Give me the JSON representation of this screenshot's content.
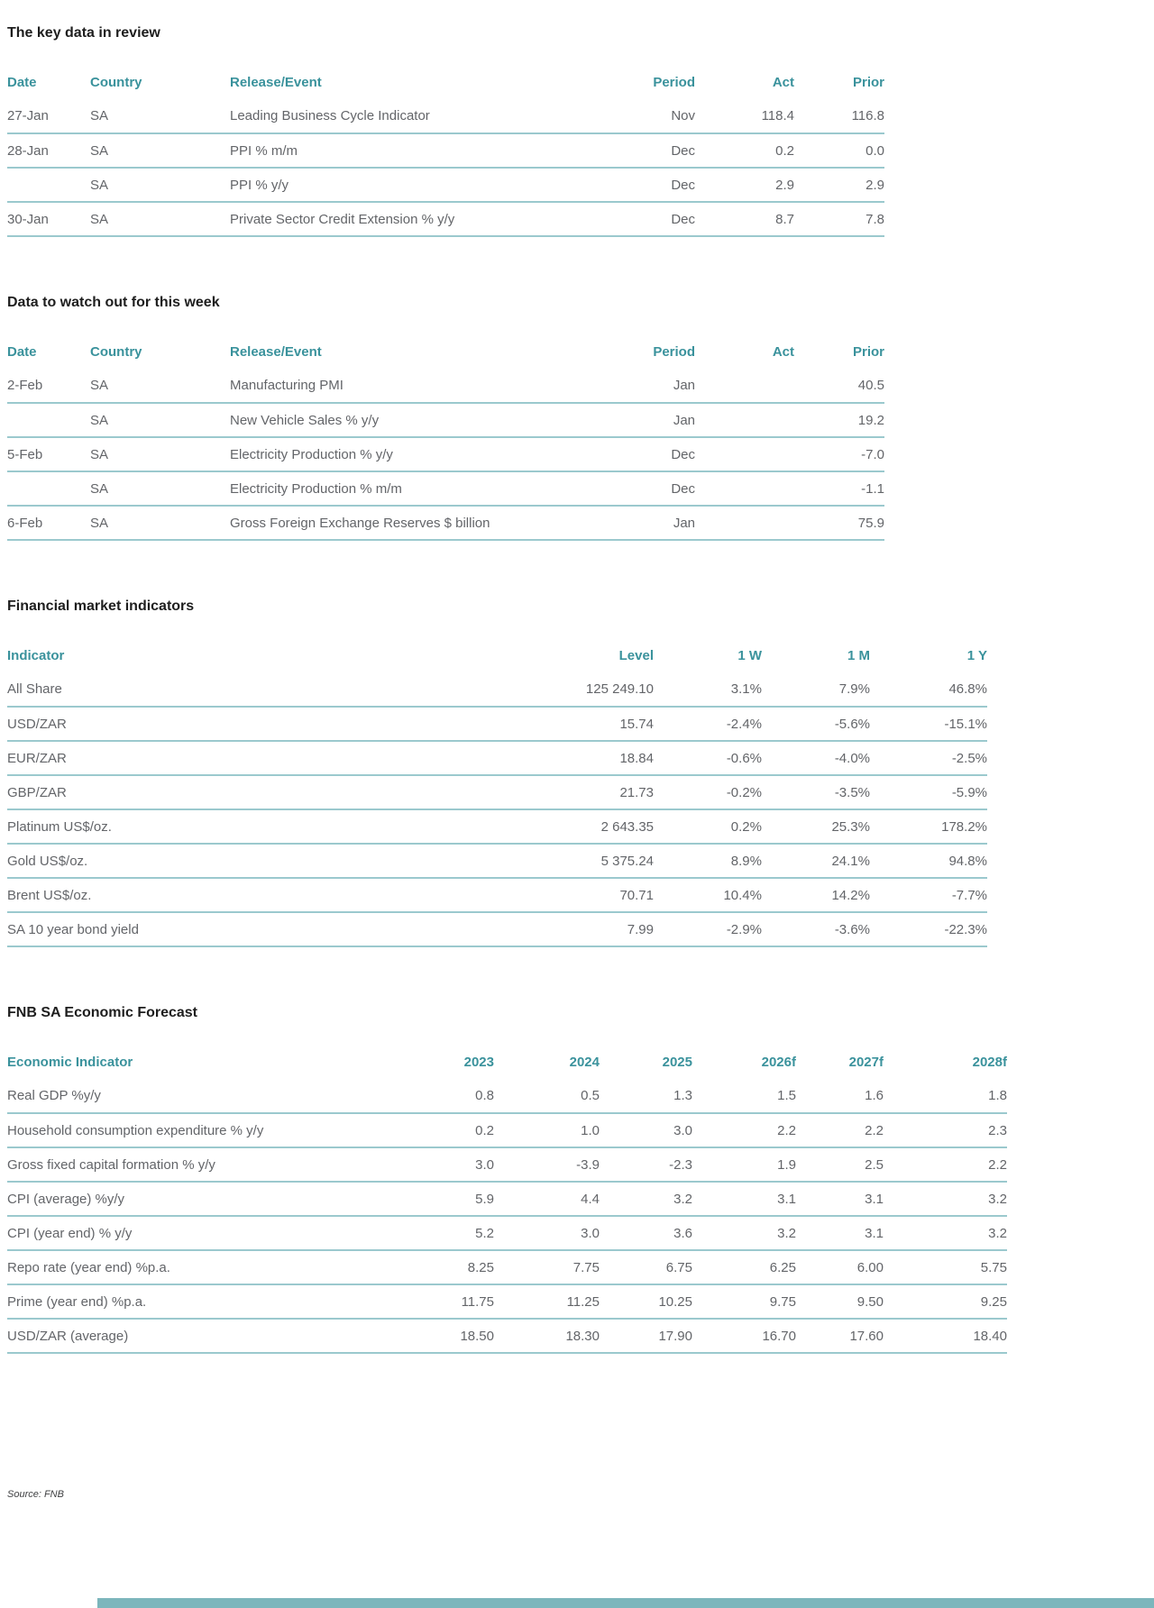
{
  "page": {
    "source_note": "Source: FNB",
    "colors": {
      "accent_teal": "#3a929c",
      "row_divider": "#9bc9ce",
      "footer_bar": "#7cb6bc",
      "body_text": "#636569",
      "title_text": "#1e1e1e"
    }
  },
  "sections": [
    {
      "id": "key-data-review",
      "title": "The key data in review",
      "table": {
        "headers": [
          "Date",
          "Country",
          "Release/Event",
          "Period",
          "Act",
          "Prior"
        ],
        "rows": [
          [
            "27-Jan",
            "SA",
            "Leading Business Cycle Indicator",
            "Nov",
            "118.4",
            "116.8"
          ],
          [
            "28-Jan",
            "SA",
            "PPI % m/m",
            "Dec",
            "0.2",
            "0.0"
          ],
          [
            "",
            "SA",
            "PPI % y/y",
            "Dec",
            "2.9",
            "2.9"
          ],
          [
            "30-Jan",
            "SA",
            "Private Sector Credit Extension % y/y",
            "Dec",
            "8.7",
            "7.8"
          ]
        ]
      }
    },
    {
      "id": "data-to-watch",
      "title": "Data to watch out for this week",
      "table": {
        "headers": [
          "Date",
          "Country",
          "Release/Event",
          "Period",
          "Act",
          "Prior"
        ],
        "rows": [
          [
            "2-Feb",
            "SA",
            "Manufacturing PMI",
            "Jan",
            "",
            "40.5"
          ],
          [
            "",
            "SA",
            "New Vehicle Sales % y/y",
            "Jan",
            "",
            "19.2"
          ],
          [
            "5-Feb",
            "SA",
            "Electricity Production % y/y",
            "Dec",
            "",
            "-7.0"
          ],
          [
            "",
            "SA",
            "Electricity Production % m/m",
            "Dec",
            "",
            "-1.1"
          ],
          [
            "6-Feb",
            "SA",
            "Gross Foreign Exchange Reserves $ billion",
            "Jan",
            "",
            "75.9"
          ]
        ]
      }
    },
    {
      "id": "financial-market-indicators",
      "title": "Financial market indicators",
      "table": {
        "headers": [
          "Indicator",
          "Level",
          "1 W",
          "1 M",
          "1 Y"
        ],
        "rows": [
          [
            "All Share",
            "125 249.10",
            "3.1%",
            "7.9%",
            "46.8%"
          ],
          [
            "USD/ZAR",
            "15.74",
            "-2.4%",
            "-5.6%",
            "-15.1%"
          ],
          [
            "EUR/ZAR",
            "18.84",
            "-0.6%",
            "-4.0%",
            "-2.5%"
          ],
          [
            "GBP/ZAR",
            "21.73",
            "-0.2%",
            "-3.5%",
            "-5.9%"
          ],
          [
            "Platinum US$/oz.",
            "2 643.35",
            "0.2%",
            "25.3%",
            "178.2%"
          ],
          [
            "Gold US$/oz.",
            "5 375.24",
            "8.9%",
            "24.1%",
            "94.8%"
          ],
          [
            "Brent US$/oz.",
            "70.71",
            "10.4%",
            "14.2%",
            "-7.7%"
          ],
          [
            "SA 10 year bond yield",
            "7.99",
            "-2.9%",
            "-3.6%",
            "-22.3%"
          ]
        ]
      }
    },
    {
      "id": "fnb-sa-economic-forecast",
      "title": "FNB SA Economic Forecast",
      "table": {
        "headers": [
          "Economic Indicator",
          "2023",
          "2024",
          "2025",
          "2026f",
          "2027f",
          "2028f"
        ],
        "rows": [
          [
            "Real GDP %y/y",
            "0.8",
            "0.5",
            "1.3",
            "1.5",
            "1.6",
            "1.8"
          ],
          [
            "Household consumption expenditure % y/y",
            "0.2",
            "1.0",
            "3.0",
            "2.2",
            "2.2",
            "2.3"
          ],
          [
            "Gross fixed capital formation % y/y",
            "3.0",
            "-3.9",
            "-2.3",
            "1.9",
            "2.5",
            "2.2"
          ],
          [
            "CPI (average) %y/y",
            "5.9",
            "4.4",
            "3.2",
            "3.1",
            "3.1",
            "3.2"
          ],
          [
            "CPI (year end) % y/y",
            "5.2",
            "3.0",
            "3.6",
            "3.2",
            "3.1",
            "3.2"
          ],
          [
            "Repo rate (year end) %p.a.",
            "8.25",
            "7.75",
            "6.75",
            "6.25",
            "6.00",
            "5.75"
          ],
          [
            "Prime (year end) %p.a.",
            "11.75",
            "11.25",
            "10.25",
            "9.75",
            "9.50",
            "9.25"
          ],
          [
            "USD/ZAR (average)",
            "18.50",
            "18.30",
            "17.90",
            "16.70",
            "17.60",
            "18.40"
          ]
        ]
      }
    }
  ]
}
